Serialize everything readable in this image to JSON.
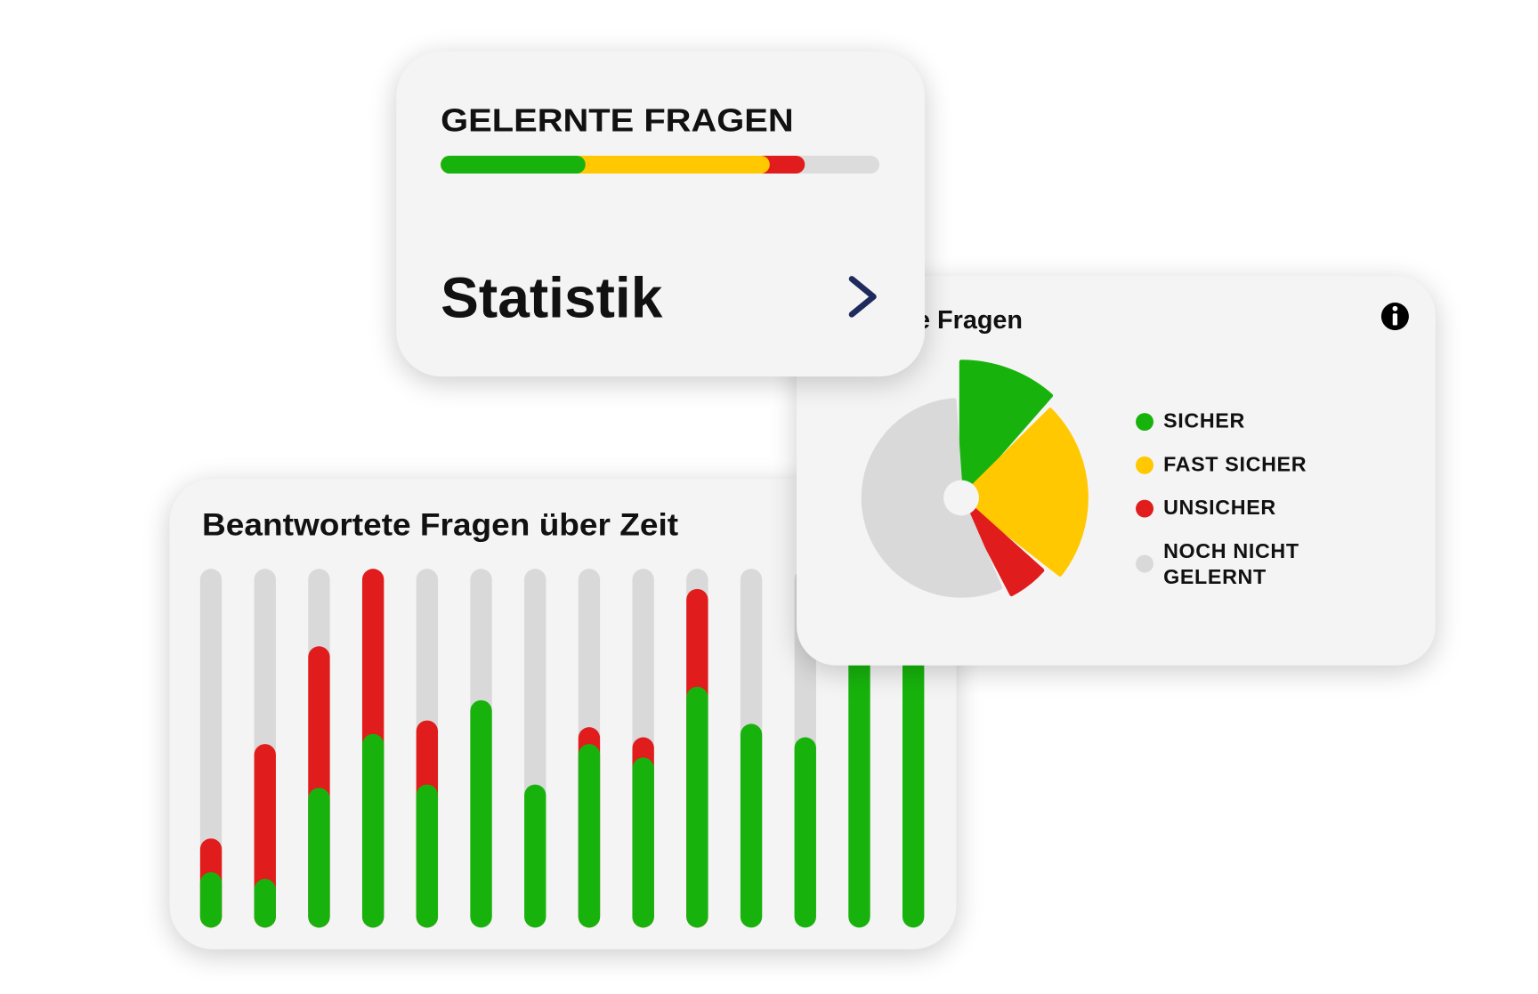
{
  "chart_data": [
    {
      "type": "progress",
      "title": "GELERNTE FRAGEN",
      "xlim": [
        0,
        100
      ],
      "track_color": "#dcdcdc",
      "segments": [
        {
          "color": "#17b30c",
          "value": 33
        },
        {
          "color": "#ffc800",
          "value": 42
        },
        {
          "color": "#e01c1c",
          "value": 8
        }
      ]
    },
    {
      "type": "pie",
      "title": "e Fragen",
      "slices": [
        {
          "name": "SICHER",
          "color": "#17b30c",
          "value": 12,
          "radius": 100
        },
        {
          "name": "FAST SICHER",
          "color": "#ffc800",
          "value": 24,
          "radius": 92
        },
        {
          "name": "UNSICHER",
          "color": "#e01c1c",
          "value": 6,
          "radius": 80
        },
        {
          "name": "NOCH NICHT GELERNT",
          "color": "#d9d9d9",
          "value": 58,
          "radius": 72
        }
      ]
    },
    {
      "type": "bar",
      "title": "Beantwortete Fragen über Zeit",
      "ylim": [
        0,
        100
      ],
      "track_color": "#d9d9d9",
      "series": [
        {
          "color": "#17b30c",
          "values": [
            10,
            8,
            35,
            51,
            36,
            61,
            36,
            48,
            44,
            65,
            54,
            50,
            80,
            74
          ]
        },
        {
          "color": "#e01c1c",
          "values": [
            10,
            40,
            42,
            49,
            19,
            0,
            0,
            5,
            6,
            29,
            0,
            0,
            0,
            0
          ]
        }
      ]
    }
  ],
  "link": {
    "label": "Statistik"
  }
}
